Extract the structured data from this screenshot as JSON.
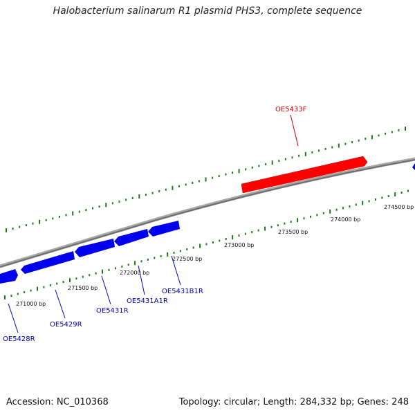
{
  "title": "Halobacterium salinarum R1 plasmid PHS3, complete sequence",
  "footer": {
    "accession": "Accession: NC_010368",
    "summary": "Topology: circular; Length: 284,332 bp; Genes: 248"
  },
  "colors": {
    "forward_gene": "#ff0000",
    "reverse_gene": "#0000ee",
    "backbone": "#808080",
    "ticks": "#1a7a1a"
  },
  "position_labels": [
    "271000 bp",
    "271500 bp",
    "272000 bp",
    "272500 bp",
    "273000 bp",
    "273500 bp",
    "274000 bp",
    "274500 bp"
  ],
  "genes": [
    {
      "name": "OE5428R",
      "strand": "reverse"
    },
    {
      "name": "OE5429R",
      "strand": "reverse"
    },
    {
      "name": "OE5431R",
      "strand": "reverse"
    },
    {
      "name": "OE5431A1R",
      "strand": "reverse"
    },
    {
      "name": "OE5431B1R",
      "strand": "reverse"
    },
    {
      "name": "OE5433F",
      "strand": "forward"
    }
  ]
}
